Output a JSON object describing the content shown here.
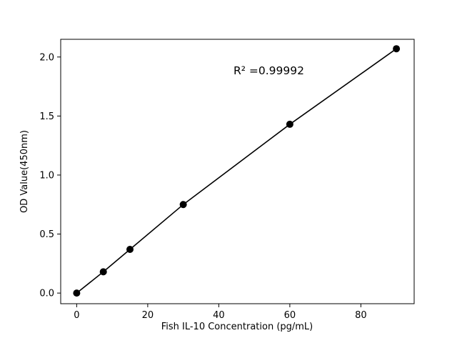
{
  "chart_data": {
    "type": "line",
    "title": "",
    "xlabel": "Fish IL-10 Concentration (pg/mL)",
    "ylabel": "OD Value(450nm)",
    "annotation": "R² =0.99992",
    "x": [
      0,
      7.5,
      15,
      30,
      60,
      90
    ],
    "y": [
      0.0,
      0.18,
      0.37,
      0.75,
      1.43,
      2.07
    ],
    "xticks": [
      0,
      20,
      40,
      60,
      80
    ],
    "xtick_labels": [
      "0",
      "20",
      "40",
      "60",
      "80"
    ],
    "yticks": [
      0.0,
      0.5,
      1.0,
      1.5,
      2.0
    ],
    "ytick_labels": [
      "0.0",
      "0.5",
      "1.0",
      "1.5",
      "2.0"
    ],
    "xlim": [
      -4.5,
      95
    ],
    "ylim": [
      -0.09,
      2.15
    ],
    "legend": "none",
    "grid": false,
    "marker": "circle",
    "line_color": "#000000",
    "marker_color": "#000000",
    "background_color": "#ffffff"
  }
}
